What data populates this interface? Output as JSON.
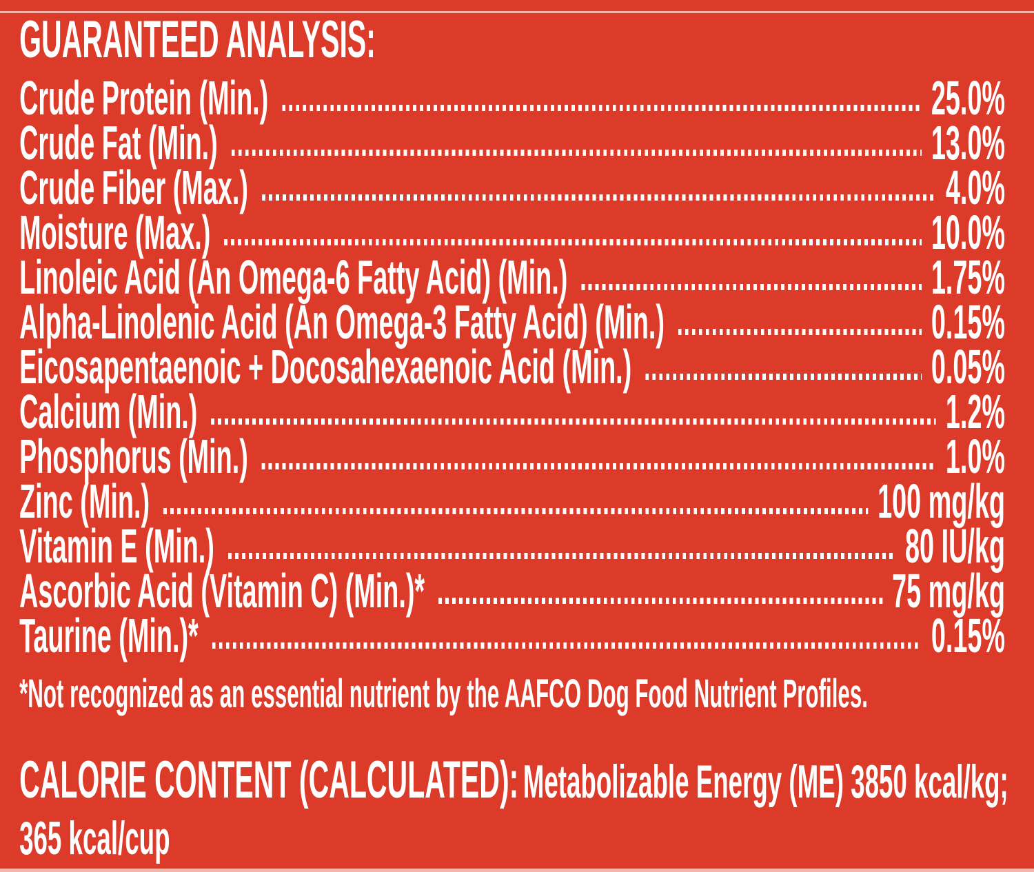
{
  "panel": {
    "background_color": "#DC3B2A",
    "text_color": "#FFFFFF"
  },
  "guaranteed_analysis": {
    "title": "GUARANTEED ANALYSIS:",
    "rows": [
      {
        "label": "Crude Protein (Min.)",
        "value": "25.0%"
      },
      {
        "label": "Crude Fat (Min.)",
        "value": "13.0%"
      },
      {
        "label": "Crude Fiber (Max.)",
        "value": "4.0%"
      },
      {
        "label": "Moisture (Max.)",
        "value": "10.0%"
      },
      {
        "label": "Linoleic Acid (An Omega-6 Fatty Acid) (Min.)",
        "value": "1.75%"
      },
      {
        "label": "Alpha-Linolenic Acid (An Omega-3 Fatty Acid) (Min.)",
        "value": "0.15%"
      },
      {
        "label": "Eicosapentaenoic + Docosahexaenoic Acid (Min.)",
        "value": "0.05%"
      },
      {
        "label": "Calcium (Min.)",
        "value": "1.2%"
      },
      {
        "label": "Phosphorus (Min.)",
        "value": "1.0%"
      },
      {
        "label": "Zinc (Min.)",
        "value": "100 mg/kg"
      },
      {
        "label": "Vitamin E (Min.)",
        "value": "80 IU/kg"
      },
      {
        "label": "Ascorbic Acid (Vitamin C) (Min.)*",
        "value": "75 mg/kg"
      },
      {
        "label": "Taurine (Min.)*",
        "value": "0.15%"
      }
    ],
    "footnote": "*Not recognized as an essential nutrient by the AAFCO Dog Food Nutrient Profiles."
  },
  "calorie_content": {
    "heading": "CALORIE CONTENT (CALCULATED):",
    "metabolizable_energy": "Metabolizable Energy (ME) 3850 kcal/kg;",
    "per_cup": "365 kcal/cup"
  }
}
